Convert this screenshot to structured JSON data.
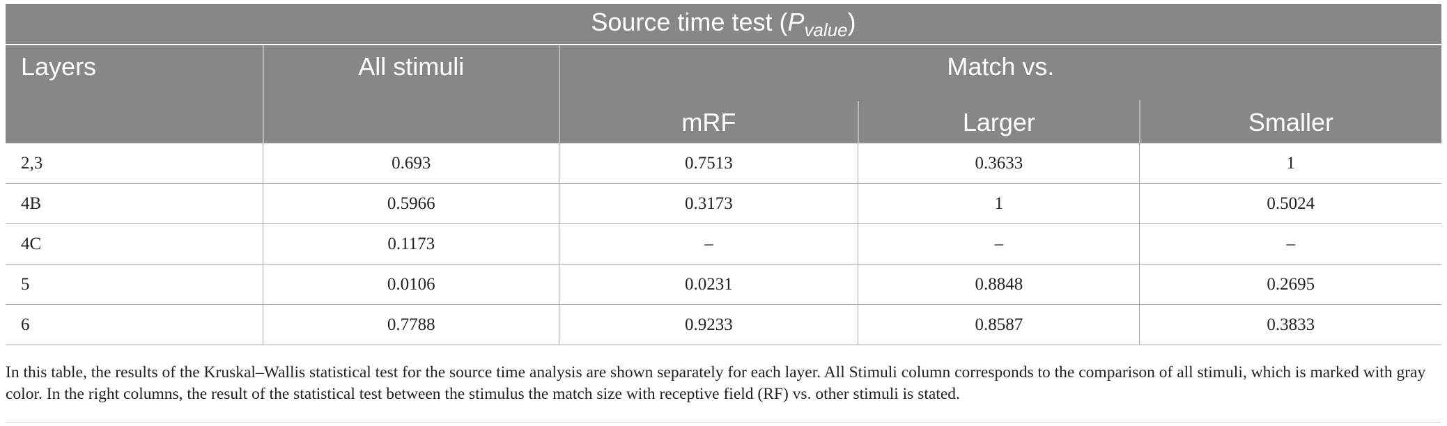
{
  "table": {
    "title_main": "Source time test (",
    "title_symbol": "P",
    "title_subscript": "value",
    "title_close": ")",
    "headers": {
      "layers": "Layers",
      "all_stimuli": "All stimuli",
      "match_vs": "Match vs.",
      "mrf": "mRF",
      "larger": "Larger",
      "smaller": "Smaller"
    },
    "rows": [
      {
        "layer": "2,3",
        "all": "0.693",
        "mrf": "0.7513",
        "larger": "0.3633",
        "smaller": "1"
      },
      {
        "layer": "4B",
        "all": "0.5966",
        "mrf": "0.3173",
        "larger": "1",
        "smaller": "0.5024"
      },
      {
        "layer": "4C",
        "all": "0.1173",
        "mrf": "–",
        "larger": "–",
        "smaller": "–"
      },
      {
        "layer": "5",
        "all": "0.0106",
        "mrf": "0.0231",
        "larger": "0.8848",
        "smaller": "0.2695"
      },
      {
        "layer": "6",
        "all": "0.7788",
        "mrf": "0.9233",
        "larger": "0.8587",
        "smaller": "0.3833"
      }
    ]
  },
  "caption": "In this table, the results of the Kruskal–Wallis statistical test for the source time analysis are shown separately for each layer. All Stimuli column corresponds to the comparison of all stimuli, which is marked with gray color. In the right columns, the result of the statistical test between the stimulus the match size with receptive field (RF) vs. other stimuli is stated."
}
